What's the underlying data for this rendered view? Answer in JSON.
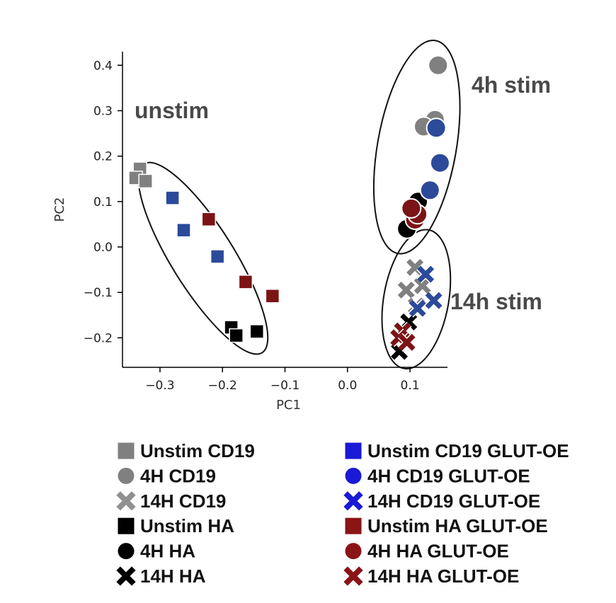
{
  "chart_data": {
    "type": "scatter",
    "title": "",
    "xlabel": "PC1",
    "ylabel": "PC2",
    "xlim": [
      -0.36,
      0.16
    ],
    "ylim": [
      -0.265,
      0.43
    ],
    "xticks": [
      -0.3,
      -0.2,
      -0.1,
      0.0,
      0.1
    ],
    "xtick_labels": [
      "−0.3",
      "−0.2",
      "−0.1",
      "0.0",
      "0.1"
    ],
    "yticks": [
      -0.2,
      -0.1,
      0.0,
      0.1,
      0.2,
      0.3,
      0.4
    ],
    "ytick_labels": [
      "−0.2",
      "−0.1",
      "0.0",
      "0.1",
      "0.2",
      "0.3",
      "0.4"
    ],
    "grid": false,
    "legend_position": "below",
    "annotations": [
      "unstim",
      "4h stim",
      "14h stim"
    ],
    "series": [
      {
        "name": "Unstim CD19",
        "marker": "square",
        "color": "#808080",
        "points": [
          [
            -0.332,
            0.172
          ],
          [
            -0.339,
            0.152
          ],
          [
            -0.323,
            0.145
          ]
        ]
      },
      {
        "name": "4H CD19",
        "marker": "circle",
        "color": "#808080",
        "points": [
          [
            0.145,
            0.4
          ],
          [
            0.14,
            0.28
          ],
          [
            0.122,
            0.265
          ]
        ]
      },
      {
        "name": "14H CD19",
        "marker": "x",
        "color": "#808080",
        "points": [
          [
            0.108,
            -0.045
          ],
          [
            0.12,
            -0.085
          ],
          [
            0.094,
            -0.095
          ],
          [
            0.11,
            -0.13
          ]
        ]
      },
      {
        "name": "Unstim HA",
        "marker": "square",
        "color": "#000000",
        "points": [
          [
            -0.186,
            -0.177
          ],
          [
            -0.178,
            -0.195
          ],
          [
            -0.145,
            -0.186
          ]
        ]
      },
      {
        "name": "4H HA",
        "marker": "circle",
        "color": "#000000",
        "points": [
          [
            0.113,
            0.1
          ],
          [
            0.095,
            0.04
          ]
        ]
      },
      {
        "name": "14H HA",
        "marker": "x",
        "color": "#000000",
        "points": [
          [
            0.098,
            -0.165
          ],
          [
            0.083,
            -0.23
          ]
        ]
      },
      {
        "name": "Unstim CD19 GLUT-OE",
        "marker": "square",
        "color": "#2c4a9a",
        "points": [
          [
            -0.28,
            0.108
          ],
          [
            -0.262,
            0.037
          ],
          [
            -0.208,
            -0.021
          ]
        ]
      },
      {
        "name": "4H CD19 GLUT-OE",
        "marker": "circle",
        "color": "#2c4a9a",
        "points": [
          [
            0.142,
            0.262
          ],
          [
            0.148,
            0.185
          ],
          [
            0.132,
            0.125
          ]
        ]
      },
      {
        "name": "14H CD19 GLUT-OE",
        "marker": "x",
        "color": "#2c4a9a",
        "points": [
          [
            0.125,
            -0.06
          ],
          [
            0.138,
            -0.118
          ],
          [
            0.112,
            -0.135
          ]
        ]
      },
      {
        "name": "Unstim HA GLUT-OE",
        "marker": "square",
        "color": "#7b1416",
        "points": [
          [
            -0.222,
            0.061
          ],
          [
            -0.163,
            -0.077
          ],
          [
            -0.12,
            -0.108
          ]
        ]
      },
      {
        "name": "4H HA GLUT-OE",
        "marker": "circle",
        "color": "#7b1416",
        "points": [
          [
            0.108,
            0.06
          ],
          [
            0.112,
            0.072
          ],
          [
            0.102,
            0.085
          ]
        ]
      },
      {
        "name": "14H HA GLUT-OE",
        "marker": "x",
        "color": "#7b1416",
        "points": [
          [
            0.088,
            -0.185
          ],
          [
            0.082,
            -0.2
          ],
          [
            0.095,
            -0.21
          ]
        ]
      }
    ],
    "ellipses": [
      {
        "label": "unstim",
        "cx": -0.231,
        "cy": -0.025,
        "rx_data": 0.05,
        "ry_data": 0.245,
        "angle_deg": -32
      },
      {
        "label": "4h stim",
        "cx": 0.111,
        "cy": 0.22,
        "rx_data": 0.063,
        "ry_data": 0.238,
        "angle_deg": 10
      },
      {
        "label": "14h stim",
        "cx": 0.11,
        "cy": -0.115,
        "rx_data": 0.052,
        "ry_data": 0.155,
        "angle_deg": 10
      }
    ]
  },
  "legend": [
    {
      "label": "Unstim CD19",
      "marker": "square",
      "color": "#808080"
    },
    {
      "label": "4H CD19",
      "marker": "circle",
      "color": "#808080"
    },
    {
      "label": "14H CD19",
      "marker": "x",
      "color": "#909090"
    },
    {
      "label": "Unstim HA",
      "marker": "square",
      "color": "#000000"
    },
    {
      "label": "4H HA",
      "marker": "circle",
      "color": "#000000"
    },
    {
      "label": "14H HA",
      "marker": "x",
      "color": "#000000"
    },
    {
      "label": "Unstim CD19 GLUT-OE",
      "marker": "square",
      "color": "#1a1ad6"
    },
    {
      "label": "4H CD19 GLUT-OE",
      "marker": "circle",
      "color": "#1a1ad6"
    },
    {
      "label": "14H CD19 GLUT-OE",
      "marker": "x",
      "color": "#1a1ad6"
    },
    {
      "label": "Unstim HA GLUT-OE",
      "marker": "square",
      "color": "#8a1416"
    },
    {
      "label": "4H HA GLUT-OE",
      "marker": "circle",
      "color": "#8a1416"
    },
    {
      "label": "14H HA GLUT-OE",
      "marker": "x",
      "color": "#8a1416"
    }
  ]
}
